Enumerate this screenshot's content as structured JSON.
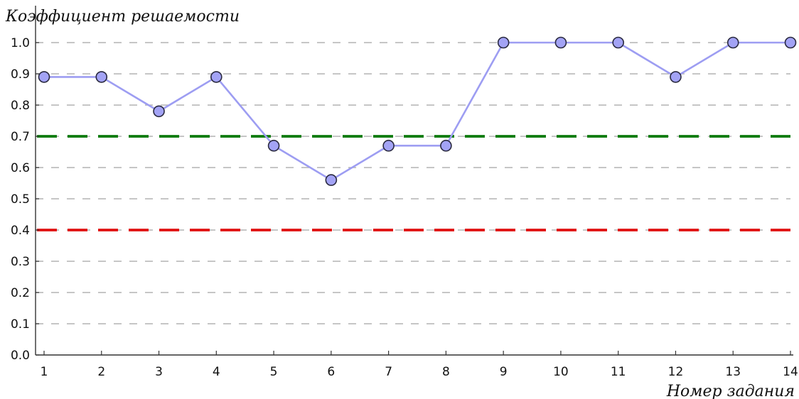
{
  "chart_data": {
    "type": "line",
    "ylabel": "Коэффициент решаемости",
    "xlabel": "Номер задания",
    "x": [
      1,
      2,
      3,
      4,
      5,
      6,
      7,
      8,
      9,
      10,
      11,
      12,
      13,
      14
    ],
    "x_tick_labels": [
      "1",
      "2",
      "3",
      "4",
      "5",
      "6",
      "7",
      "8",
      "9",
      "10",
      "11",
      "12",
      "13",
      "14"
    ],
    "y_tick_labels": [
      "0.0",
      "0.1",
      "0.2",
      "0.3",
      "0.4",
      "0.5",
      "0.6",
      "0.7",
      "0.8",
      "0.9",
      "1.0"
    ],
    "ylim": [
      0,
      1.0
    ],
    "grid": true,
    "series": [
      {
        "values": [
          0.89,
          0.89,
          0.78,
          0.89,
          0.67,
          0.56,
          0.67,
          0.67,
          1.0,
          1.0,
          1.0,
          0.89,
          1.0,
          1.0
        ],
        "color": "#9d9df2",
        "marker_color": "#a3a3f5"
      }
    ],
    "reference_lines": [
      {
        "y": 0.7,
        "color": "#0a7a0a"
      },
      {
        "y": 0.4,
        "color": "#e01010"
      }
    ]
  }
}
